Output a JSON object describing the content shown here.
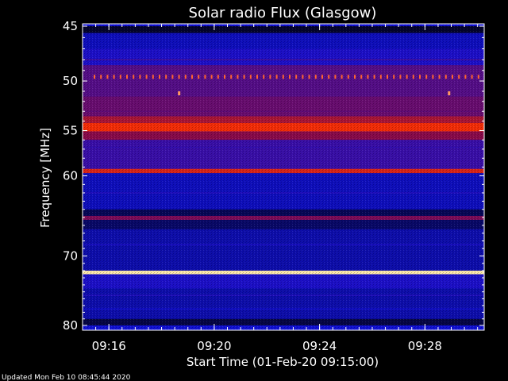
{
  "chart_data": {
    "type": "heatmap",
    "title": "Solar radio Flux (Glasgow)",
    "xlabel": "Start Time (01-Feb-20 09:15:00)",
    "ylabel": "Frequency [MHz]",
    "y_scale": "log",
    "ylim": [
      45,
      80
    ],
    "y_ticks": [
      "45",
      "50",
      "55",
      "60",
      "70",
      "80"
    ],
    "x_ticks": [
      "09:16",
      "09:20",
      "09:24",
      "09:28"
    ],
    "footer": "Updated Mon Feb 10 08:45:44 2020",
    "colors": {
      "background": "#000000",
      "low": "#1010d8",
      "mid": "#8a0a4a",
      "high": "#ff3000",
      "peak": "#ffffc0"
    },
    "bands": [
      {
        "from": 45.0,
        "to": 45.6,
        "level": 0.05
      },
      {
        "from": 45.6,
        "to": 47.0,
        "level": 0.22
      },
      {
        "from": 47.0,
        "to": 48.5,
        "level": 0.28
      },
      {
        "from": 48.5,
        "to": 51.5,
        "level": 0.42
      },
      {
        "from": 51.5,
        "to": 53.5,
        "level": 0.47
      },
      {
        "from": 53.5,
        "to": 54.2,
        "level": 0.62
      },
      {
        "from": 54.2,
        "to": 55.1,
        "level": 0.78
      },
      {
        "from": 55.1,
        "to": 56.0,
        "level": 0.55
      },
      {
        "from": 56.0,
        "to": 59.2,
        "level": 0.35
      },
      {
        "from": 59.2,
        "to": 59.7,
        "level": 0.72
      },
      {
        "from": 59.7,
        "to": 64.0,
        "level": 0.22
      },
      {
        "from": 64.0,
        "to": 64.8,
        "level": 0.1
      },
      {
        "from": 64.8,
        "to": 65.3,
        "level": 0.52
      },
      {
        "from": 65.3,
        "to": 66.5,
        "level": 0.12
      },
      {
        "from": 66.5,
        "to": 72.0,
        "level": 0.2
      },
      {
        "from": 72.0,
        "to": 72.5,
        "level": 0.98
      },
      {
        "from": 72.5,
        "to": 74.5,
        "level": 0.28
      },
      {
        "from": 74.5,
        "to": 79.0,
        "level": 0.2
      },
      {
        "from": 79.0,
        "to": 80.0,
        "level": 0.08
      }
    ],
    "thin_lines": [
      {
        "freq": 48.0,
        "level": 0.38
      },
      {
        "freq": 53.0,
        "level": 0.45
      },
      {
        "freq": 56.8,
        "level": 0.33
      },
      {
        "freq": 62.0,
        "level": 0.3
      },
      {
        "freq": 68.5,
        "level": 0.28
      },
      {
        "freq": 75.5,
        "level": 0.3
      },
      {
        "freq": 77.5,
        "level": 0.26
      }
    ],
    "dotted_line": {
      "freq": 49.6,
      "level": 0.85
    },
    "spots": [
      {
        "time": "09:18:40",
        "freq": 51.2,
        "level": 0.9
      },
      {
        "time": "09:28:55",
        "freq": 51.2,
        "level": 0.9
      }
    ],
    "time_range": [
      "09:15:00",
      "09:30:15"
    ]
  }
}
